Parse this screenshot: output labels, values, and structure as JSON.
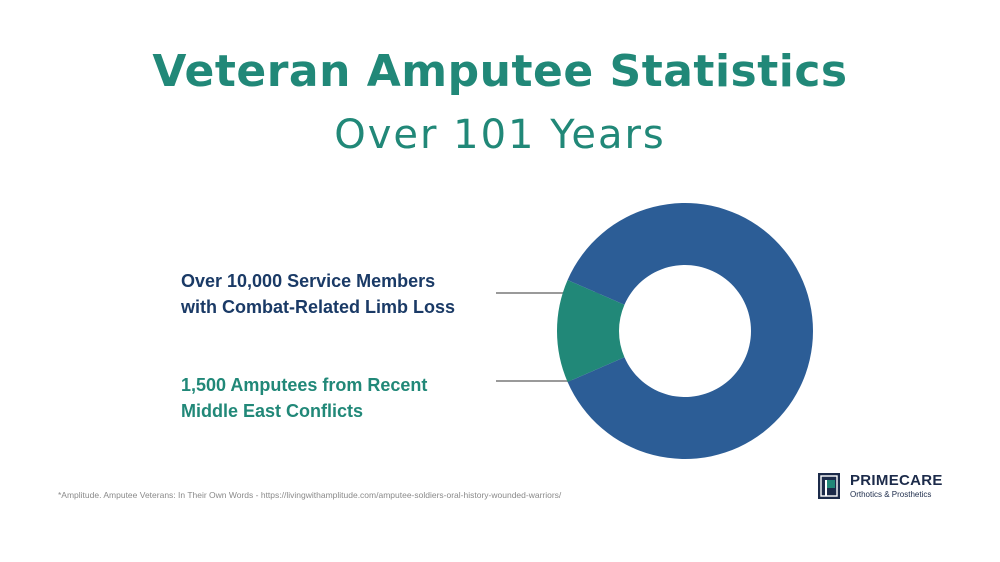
{
  "header": {
    "title": "Veteran Amputee Statistics",
    "subtitle": "Over 101 Years"
  },
  "chart_data": {
    "type": "pie",
    "title": "Veteran Amputee Statistics",
    "subtitle": "Over 101 Years",
    "variant": "donut",
    "categories": [
      "Over 10,000 Service Members with Combat-Related Limb Loss",
      "1,500 Amputees from Recent Middle East Conflicts"
    ],
    "values": [
      10000,
      1500
    ],
    "colors": [
      "#2c5d96",
      "#218878"
    ],
    "labels": [
      {
        "line1": "Over 10,000 Service Members",
        "line2": "with Combat-Related Limb Loss"
      },
      {
        "line1": "1,500 Amputees from Recent",
        "line2": "Middle East Conflicts"
      }
    ],
    "legend": "left"
  },
  "footer": {
    "source": "*Amplitude. Amputee Veterans: In Their Own Words - https://livingwithamplitude.com/amputee-soldiers-oral-history-wounded-warriors/"
  },
  "logo": {
    "name": "PRIMECARE",
    "tagline": "Orthotics & Prosthetics",
    "icon": "primecare-logo-icon",
    "color": "#1c2b4a"
  }
}
